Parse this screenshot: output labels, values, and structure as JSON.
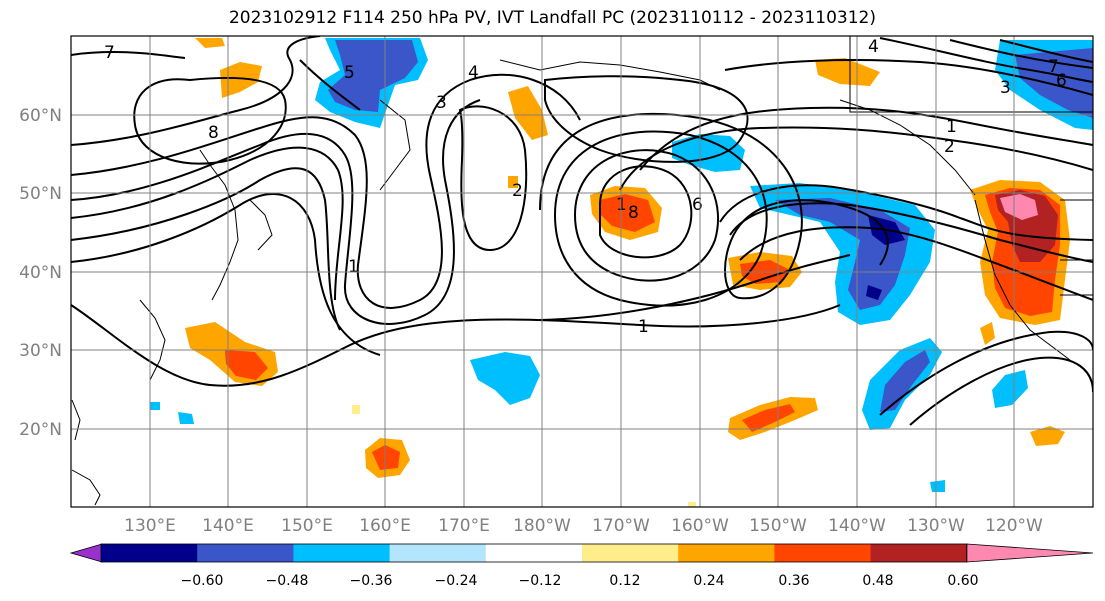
{
  "title": "2023102912 F114 250 hPa PV, IVT Landfall PC (2023110112 - 2023110312)",
  "longitude_labels": [
    "130°E",
    "140°E",
    "150°E",
    "160°E",
    "170°E",
    "180°W",
    "170°W",
    "160°W",
    "150°W",
    "140°W",
    "130°W",
    "120°W"
  ],
  "latitude_labels": [
    "60°N",
    "50°N",
    "40°N",
    "30°N",
    "20°N"
  ],
  "contour_labels": [
    "7",
    "5",
    "4",
    "3",
    "8",
    "2",
    "1",
    "8",
    "6",
    "4",
    "7",
    "6",
    "3",
    "1",
    "2",
    "1",
    "1"
  ],
  "colorbar": {
    "tick_labels": [
      "−0.60",
      "−0.48",
      "−0.36",
      "−0.24",
      "−0.12",
      "0.12",
      "0.24",
      "0.36",
      "0.48",
      "0.60"
    ],
    "colors": [
      "#9932cc",
      "#00008b",
      "#3a56c8",
      "#00bfff",
      "#b3e5fc",
      "#ffffff",
      "#ffec8b",
      "#ffa500",
      "#ff4500",
      "#b22222",
      "#ff88b0"
    ]
  }
}
